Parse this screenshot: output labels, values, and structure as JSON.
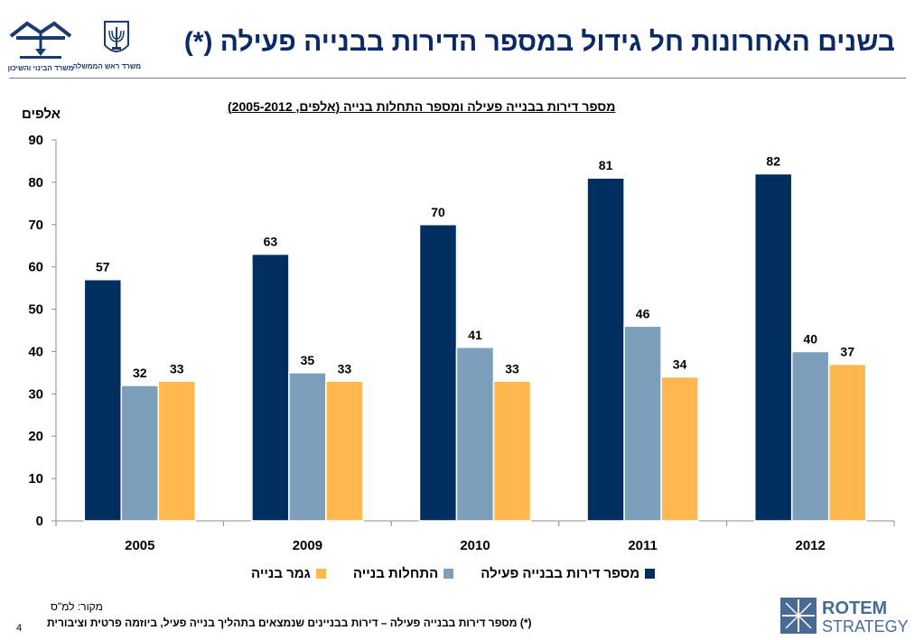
{
  "slide": {
    "title": "בשנים האחרונות חל גידול במספר הדירות בבנייה פעילה (*)",
    "page_number": "4",
    "source": "מקור: למ\"ס",
    "footnote": "(*) מספר דירות בבנייה פעילה – דירות בבניינים שנמצאים בתהליך בנייה פעיל, ביוזמה פרטית וציבורית"
  },
  "logos": {
    "housing_ministry": "משרד הבינוי והשיכון",
    "pmo": "משרד ראש הממשלה",
    "rotem_top": "ROTEM",
    "rotem_bottom": "STRATEGY"
  },
  "chart_data": {
    "type": "bar",
    "title": "מספר דירות בבנייה פעילה ומספר התחלות בנייה (אלפים, 2005-2012)",
    "ylabel": "אלפים",
    "xlabel": "",
    "categories": [
      "2005",
      "2009",
      "2010",
      "2011",
      "2012"
    ],
    "ylim": [
      0,
      90
    ],
    "yticks": [
      0,
      10,
      20,
      30,
      40,
      50,
      60,
      70,
      80,
      90
    ],
    "grid": false,
    "legend_position": "bottom",
    "series": [
      {
        "name": "מספר דירות בבנייה פעילה",
        "color": "#002f5f",
        "values": [
          57,
          63,
          70,
          81,
          82
        ],
        "labels": [
          "57",
          "63",
          "70",
          "81",
          "82"
        ]
      },
      {
        "name": "התחלות בנייה",
        "color": "#7ca0bc",
        "values": [
          32,
          35,
          41,
          46,
          40
        ],
        "labels": [
          "32",
          "35",
          "41",
          "46",
          "40"
        ]
      },
      {
        "name": "גמר בנייה",
        "color": "#ffb84d",
        "values": [
          33,
          33,
          33,
          34,
          37
        ],
        "labels": [
          "33",
          "33",
          "33",
          "34",
          "37"
        ]
      }
    ]
  }
}
